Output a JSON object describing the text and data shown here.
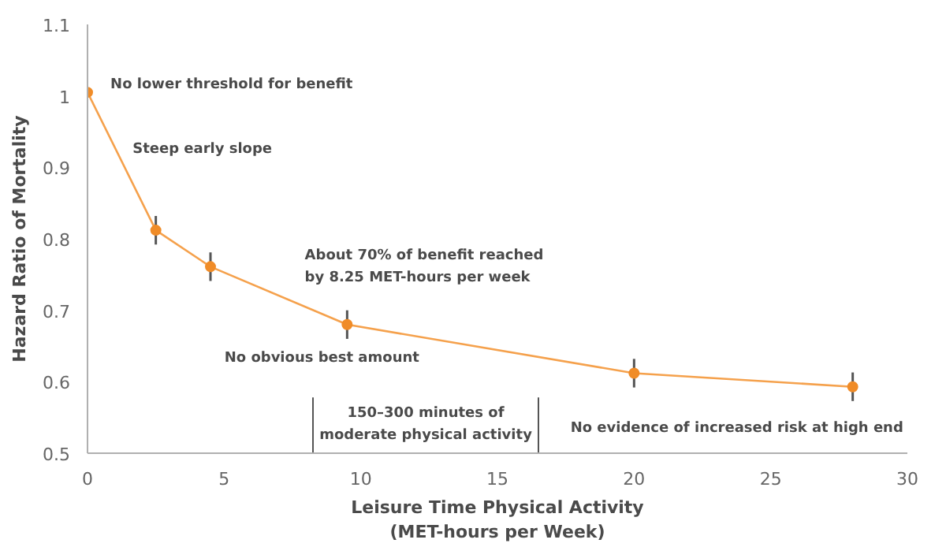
{
  "chart_data": {
    "type": "line",
    "xlabel": "Leisure Time Physical Activity\n(MET-hours per Week)",
    "ylabel": "Hazard Ratio of Mortality",
    "x": [
      0,
      2.5,
      4.5,
      9.5,
      20,
      28
    ],
    "series": [
      {
        "color": "#f5a14c",
        "values": [
          1.005,
          0.812,
          0.761,
          0.68,
          0.612,
          0.593
        ],
        "errors": [
          null,
          0.02,
          0.02,
          0.02,
          0.02,
          0.02
        ]
      }
    ],
    "marker": "circle",
    "line_style": "solid",
    "grid": false,
    "xlim": [
      0,
      30
    ],
    "xticks": [
      0,
      5,
      10,
      15,
      20,
      25,
      30
    ],
    "ylim": [
      0.5,
      1.1
    ],
    "yticks": [
      0.5,
      0.6,
      0.7,
      0.8,
      0.9,
      1,
      1.1
    ],
    "ref_lines": [
      {
        "axis": "x",
        "value": 8.25
      },
      {
        "axis": "x",
        "value": 16.5
      }
    ],
    "annotations": [
      "No lower threshold for benefit",
      "Steep early slope",
      "About 70% of benefit reached\nby 8.25 MET-hours per week",
      "No obvious best amount",
      "150–300 minutes of\nmoderate physical activity",
      "No evidence of increased risk at high end"
    ]
  }
}
